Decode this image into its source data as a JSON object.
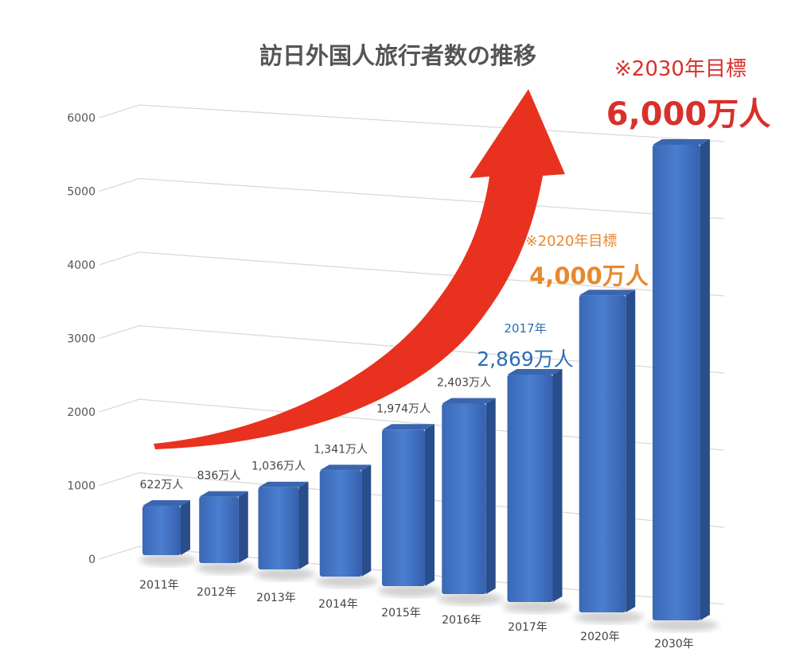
{
  "chart_data": {
    "type": "bar",
    "title": "訪日外国人旅行者数の推移",
    "xlabel": "",
    "ylabel": "",
    "ylim": [
      0,
      6000
    ],
    "yticks": [
      "0",
      "1000",
      "2000",
      "3000",
      "4000",
      "5000",
      "6000"
    ],
    "grid": true,
    "categories": [
      "2011年",
      "2012年",
      "2013年",
      "2014年",
      "2015年",
      "2016年",
      "2017年",
      "2020年",
      "2030年"
    ],
    "values": [
      622,
      836,
      1036,
      1341,
      1974,
      2403,
      2869,
      4000,
      6000
    ],
    "value_labels": [
      "622万人",
      "836万人",
      "1,036万人",
      "1,341万人",
      "1,974万人",
      "2,403万人",
      "",
      "",
      ""
    ],
    "annotations": {
      "y2017": {
        "year": "2017年",
        "value": "2,869万人",
        "color": "#2e6db4"
      },
      "target2020": {
        "label": "※2020年目標",
        "value": "4,000万人",
        "color": "#e8892f"
      },
      "target2030": {
        "label": "※2030年目標",
        "value": "6,000万人",
        "color": "#d9302a"
      }
    },
    "colors": {
      "bar": "#3f6fbf",
      "arrow": "#e8321f",
      "grid": "#d9d9d9"
    }
  }
}
